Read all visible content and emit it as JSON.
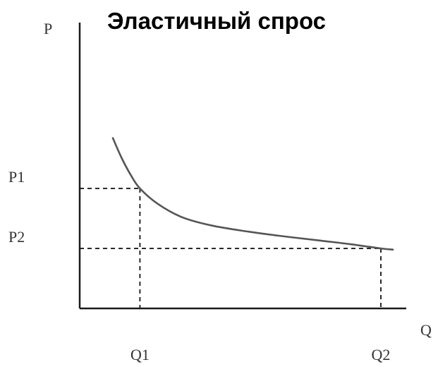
{
  "chart_data": {
    "type": "line",
    "title": "Эластичный спрос",
    "xlabel": "Q",
    "ylabel": "P",
    "xlim": [
      0,
      5
    ],
    "ylim": [
      0,
      4
    ],
    "grid": false,
    "x_ticks": [
      {
        "label": "Q1",
        "value": 1
      },
      {
        "label": "Q2",
        "value": 5
      }
    ],
    "y_ticks": [
      {
        "label": "P1",
        "value": 2
      },
      {
        "label": "P2",
        "value": 1
      }
    ],
    "series": [
      {
        "x": [
          0.55,
          0.7,
          0.85,
          1.0,
          1.3,
          1.7,
          2.2,
          2.8,
          3.4,
          4.0,
          4.5,
          5.0,
          5.2
        ],
        "y": [
          2.84,
          2.5,
          2.22,
          2.0,
          1.74,
          1.52,
          1.38,
          1.28,
          1.2,
          1.13,
          1.07,
          1.0,
          0.98
        ]
      }
    ],
    "guides": [
      {
        "x": 1,
        "y": 2
      },
      {
        "x": 5,
        "y": 1
      }
    ],
    "colors": {
      "axis": "#1a1a1a",
      "curve": "#555555",
      "guide": "#2a2a2a",
      "title": "#000000",
      "text": "#333333"
    }
  }
}
